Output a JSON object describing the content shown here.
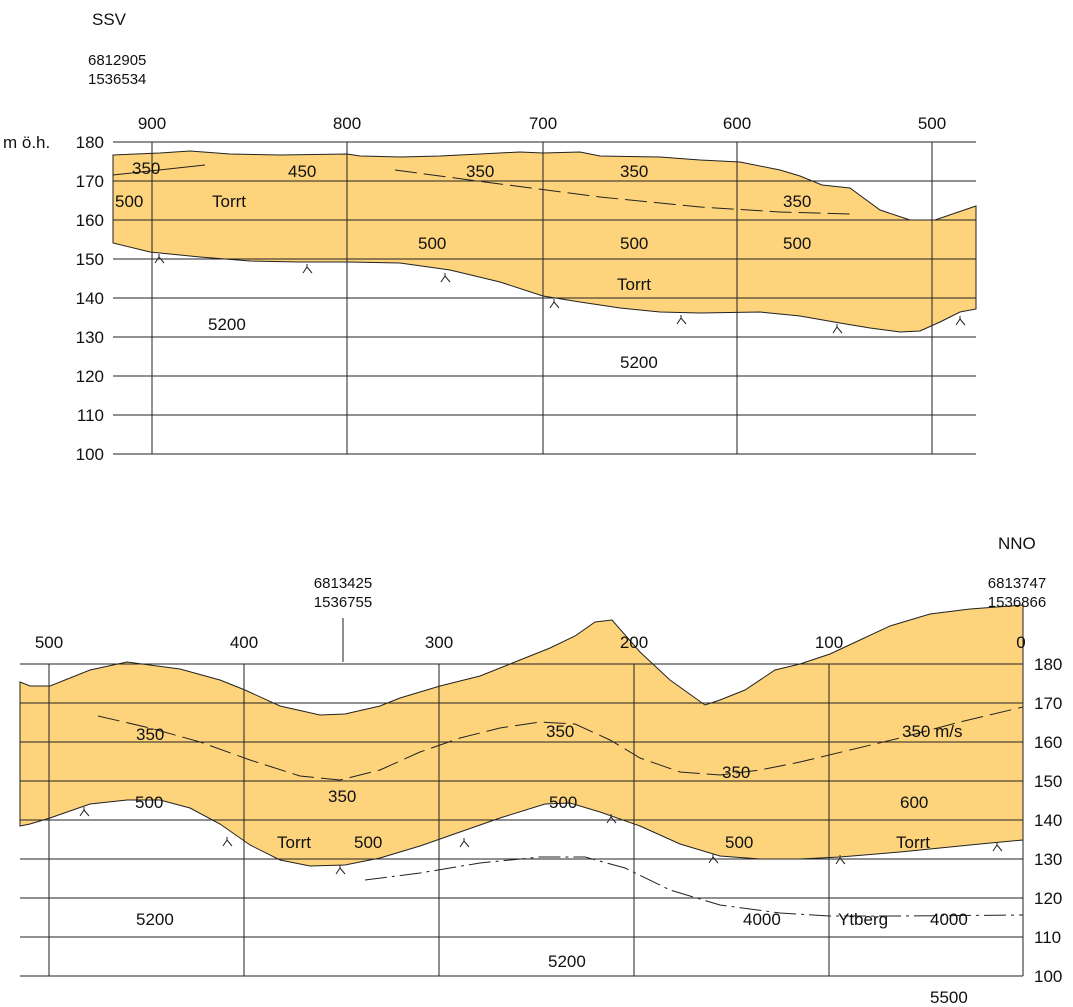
{
  "top_profile": {
    "direction": "SSV",
    "coord_north": "6812905",
    "coord_east": "1536534",
    "axis_unit": "m ö.h.",
    "distance_ticks": [
      "900",
      "800",
      "700",
      "600",
      "500"
    ],
    "elevation_ticks": [
      "180",
      "170",
      "160",
      "150",
      "140",
      "130",
      "120",
      "110",
      "100"
    ],
    "velocity_labels": [
      "350",
      "450",
      "350",
      "350",
      "500",
      "Torrt",
      "350",
      "500",
      "500",
      "500",
      "Torrt",
      "5200",
      "5200"
    ]
  },
  "bottom_profile": {
    "direction": "NNO",
    "mid_coord_north": "6813425",
    "mid_coord_east": "1536755",
    "end_coord_north": "6813747",
    "end_coord_east": "1536866",
    "distance_ticks": [
      "500",
      "400",
      "300",
      "200",
      "100",
      "0"
    ],
    "elevation_ticks": [
      "180",
      "170",
      "160",
      "150",
      "140",
      "130",
      "120",
      "110",
      "100"
    ],
    "velocity_labels": [
      "350",
      "350",
      "350 m/s",
      "350",
      "350",
      "500",
      "500",
      "600",
      "Torrt",
      "500",
      "500",
      "Torrt",
      "5200",
      "4000",
      "Ytberg",
      "4000",
      "5200",
      "5500"
    ]
  }
}
